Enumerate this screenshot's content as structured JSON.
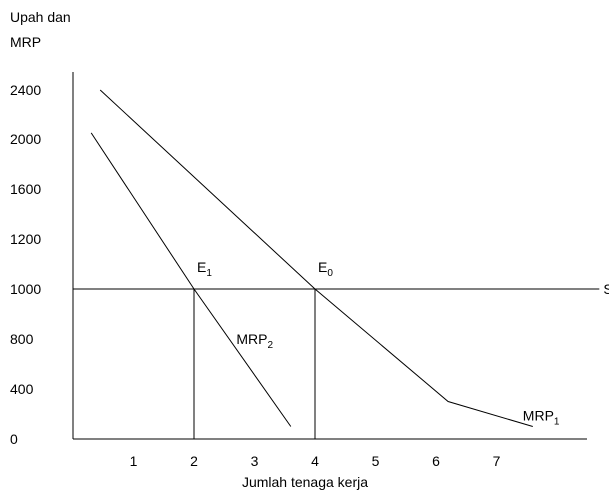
{
  "chart_data": {
    "type": "line",
    "ylabel": [
      "Upah dan",
      "MRP"
    ],
    "xlabel": "Jumlah tenaga kerja",
    "y_ticks": [
      {
        "value": 0,
        "label": "0"
      },
      {
        "value": 400,
        "label": "400"
      },
      {
        "value": 800,
        "label": "800"
      },
      {
        "value": 1000,
        "label": "1000"
      },
      {
        "value": 1200,
        "label": "1200"
      },
      {
        "value": 1600,
        "label": "1600"
      },
      {
        "value": 2000,
        "label": "2000"
      },
      {
        "value": 2400,
        "label": "2400"
      }
    ],
    "x_ticks": [
      {
        "value": 1,
        "label": "1"
      },
      {
        "value": 2,
        "label": "2"
      },
      {
        "value": 3,
        "label": "3"
      },
      {
        "value": 4,
        "label": "4"
      },
      {
        "value": 5,
        "label": "5"
      },
      {
        "value": 6,
        "label": "6"
      },
      {
        "value": 7,
        "label": "7"
      }
    ],
    "series": [
      {
        "name": "Sf",
        "label_main": "Sf",
        "label_sub": "",
        "points": [
          [
            0,
            1000
          ],
          [
            8.7,
            1000
          ]
        ]
      },
      {
        "name": "MRP1",
        "label_main": "MRP",
        "label_sub": "1",
        "points": [
          [
            0.45,
            2400
          ],
          [
            4.0,
            1000
          ],
          [
            6.2,
            300
          ],
          [
            7.6,
            100
          ]
        ]
      },
      {
        "name": "MRP2",
        "label_main": "MRP",
        "label_sub": "2",
        "points": [
          [
            0.3,
            2050
          ],
          [
            2.0,
            1000
          ],
          [
            3.6,
            100
          ]
        ]
      }
    ],
    "equilibria": [
      {
        "name": "E1",
        "label_main": "E",
        "label_sub": "1",
        "x": 2,
        "y": 1000
      },
      {
        "name": "E0",
        "label_main": "E",
        "label_sub": "0",
        "x": 4,
        "y": 1000
      }
    ],
    "xlim": [
      0,
      8.7
    ],
    "grid": false,
    "legend": "none"
  }
}
